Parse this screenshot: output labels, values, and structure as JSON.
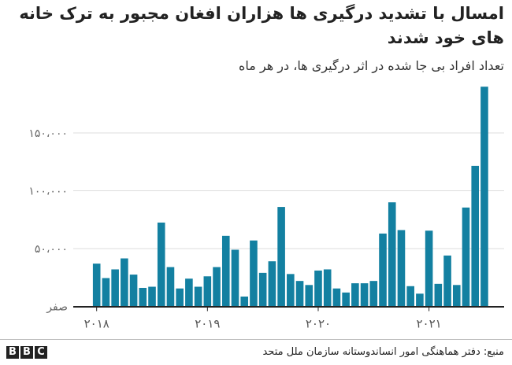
{
  "chart_data": {
    "type": "bar",
    "title": "امسال با تشدید درگیری ها هزاران افغان مجبور به ترک خانه های خود شدند",
    "subtitle": "تعداد افراد بی جا شده در اثر درگیری ها، در هر ماه",
    "categories_start": "2018-01",
    "categories_end": "2021-07",
    "values": [
      37000,
      24500,
      32000,
      41500,
      27500,
      16000,
      17000,
      72500,
      34000,
      15500,
      24000,
      17000,
      26000,
      34000,
      61000,
      49000,
      8500,
      57000,
      29000,
      39000,
      86000,
      28000,
      22000,
      18500,
      31000,
      32000,
      15500,
      12000,
      20000,
      20000,
      22000,
      63000,
      90000,
      66000,
      17500,
      11000,
      65500,
      19500,
      44000,
      18500,
      85500,
      121500,
      190000
    ],
    "ylim": [
      0,
      190000
    ],
    "yticks": [
      0,
      50000,
      100000,
      150000
    ],
    "ytick_labels": [
      "صفر",
      "۵۰،۰۰۰",
      "۱۰۰،۰۰۰",
      "۱۵۰،۰۰۰"
    ],
    "xticks": [
      {
        "index": 0,
        "label": "۲۰۱۸"
      },
      {
        "index": 12,
        "label": "۲۰۱۹"
      },
      {
        "index": 24,
        "label": "۲۰۲۰"
      },
      {
        "index": 36,
        "label": "۲۰۲۱"
      }
    ],
    "xlabel": "",
    "ylabel": "",
    "grid": true,
    "bar_color": "#1380A1"
  },
  "footer": {
    "source": "منبع: دفتر هماهنگی امور انساندوستانه سازمان ملل متحد",
    "logo": [
      "B",
      "B",
      "C"
    ]
  }
}
